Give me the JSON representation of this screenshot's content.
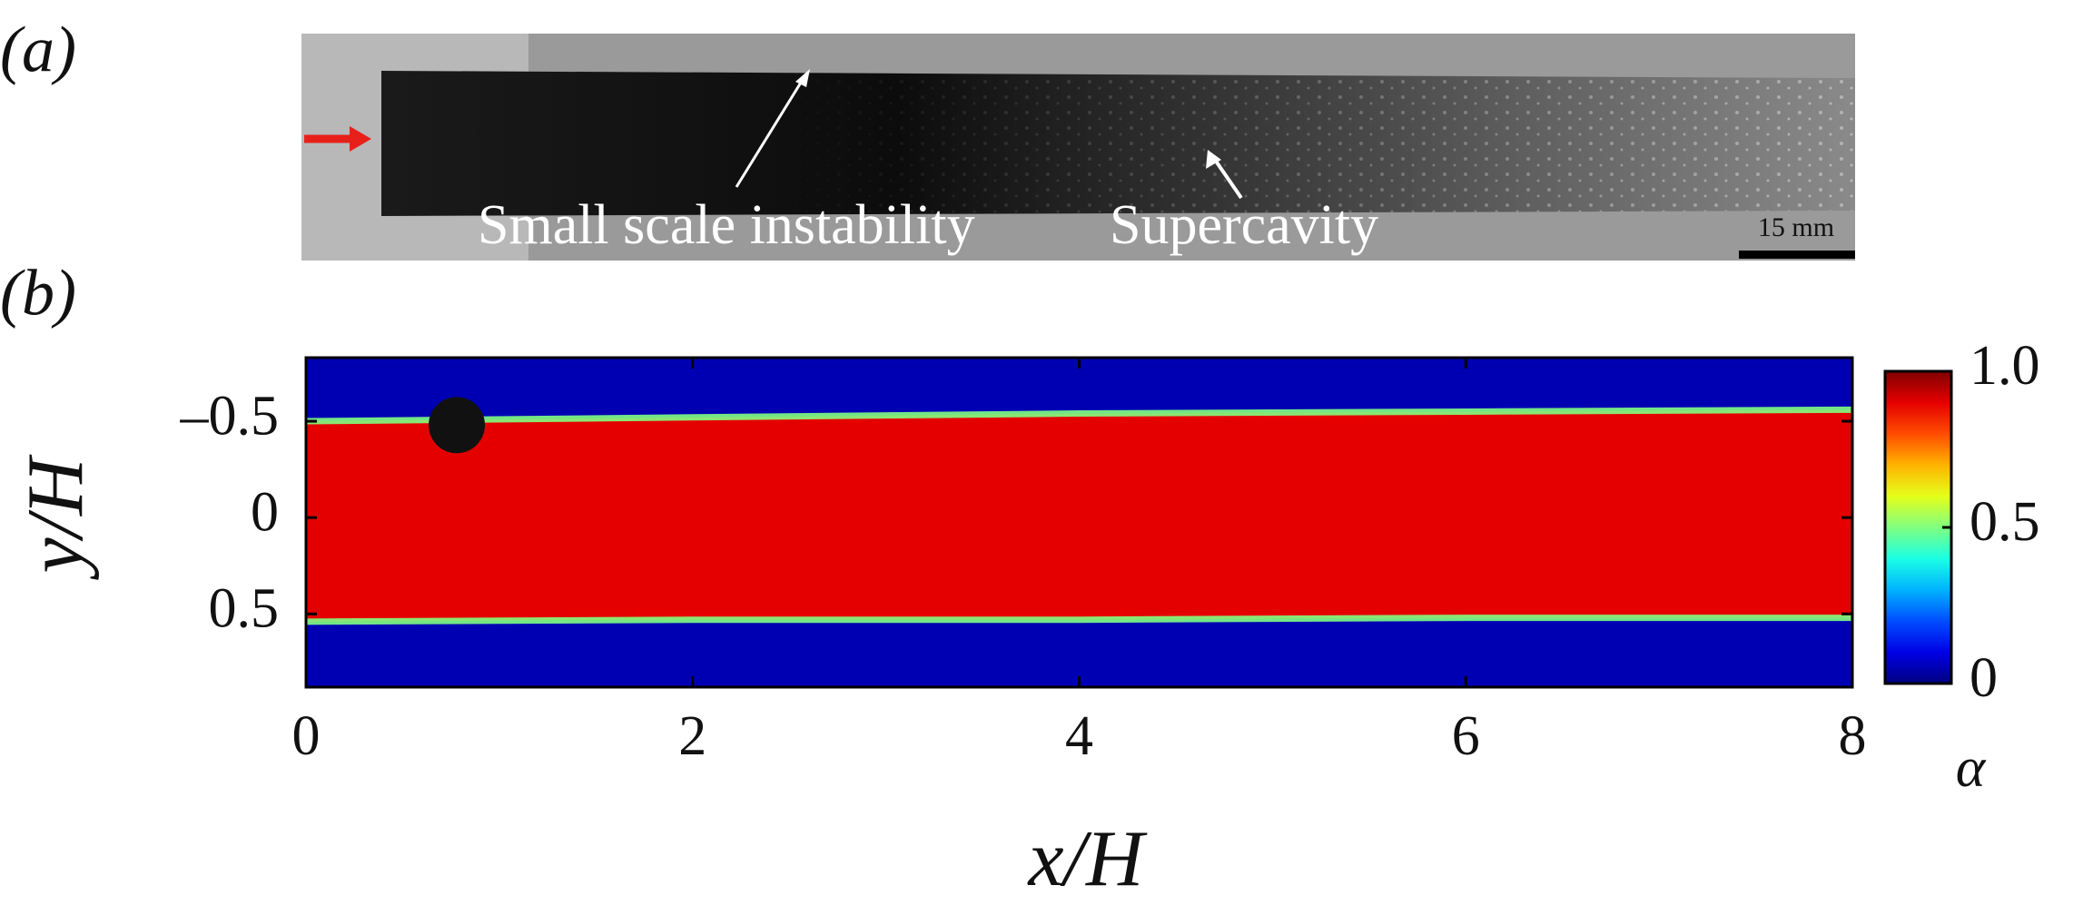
{
  "panel_a": {
    "label": "(a)",
    "annotations": [
      "Small scale instability",
      "Supercavity"
    ],
    "scale_bar": "15 mm"
  },
  "chart_data": {
    "type": "heatmap",
    "label": "(b)",
    "xlabel": "x/H",
    "ylabel": "y/H",
    "xlim": [
      0,
      8
    ],
    "xticks": [
      0,
      2,
      4,
      6,
      8
    ],
    "ylim": [
      -0.83,
      0.88
    ],
    "y_inverted": true,
    "yticks": [
      {
        "value": -0.5,
        "label": "–0.5"
      },
      0,
      0.5
    ],
    "x": [
      0,
      2,
      4,
      6,
      8
    ],
    "cavity_top": [
      -0.5,
      -0.52,
      -0.54,
      -0.55,
      -0.56
    ],
    "cavity_bottom": [
      0.54,
      0.53,
      0.53,
      0.52,
      0.52
    ],
    "alpha_inside": 0.9,
    "alpha_outside": 0.05,
    "marker": {
      "x": 0.78,
      "y": -0.48
    },
    "colormap": "jet",
    "clim": [
      0,
      1
    ],
    "cticks": [
      0,
      0.5,
      {
        "value": 1,
        "label": "1.0"
      }
    ],
    "clabel": "α"
  }
}
